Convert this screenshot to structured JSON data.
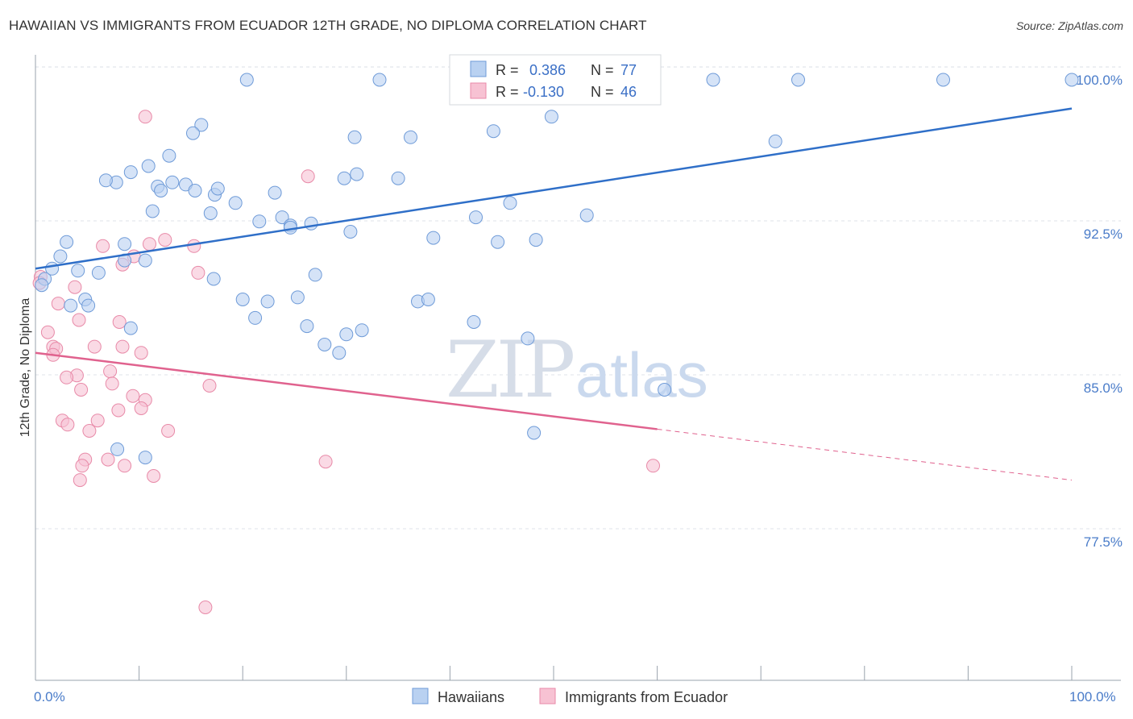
{
  "title": "HAWAIIAN VS IMMIGRANTS FROM ECUADOR 12TH GRADE, NO DIPLOMA CORRELATION CHART",
  "source": "Source: ZipAtlas.com",
  "watermark": {
    "zip": "ZIP",
    "atlas": "atlas"
  },
  "colors": {
    "blue_fill": "#b9d1f1",
    "blue_stroke": "#6f9bd8",
    "blue_line": "#2f6fc8",
    "pink_fill": "#f7c2d3",
    "pink_stroke": "#e88aa8",
    "pink_line": "#e0628e",
    "grid": "#dfe3ea",
    "tick_text": "#4a7cc9"
  },
  "legend": {
    "rows": [
      {
        "r_label": "R = ",
        "r_value": "0.386",
        "n_label": "N = ",
        "n_value": "77"
      },
      {
        "r_label": "R = ",
        "r_value": "-0.130",
        "n_label": "N = ",
        "n_value": "46"
      }
    ]
  },
  "chart_data": {
    "type": "scatter",
    "title": "HAWAIIAN VS IMMIGRANTS FROM ECUADOR 12TH GRADE, NO DIPLOMA CORRELATION CHART",
    "xlabel": "",
    "ylabel": "12th Grade, No Diploma",
    "xlim": [
      0,
      100
    ],
    "ylim": [
      70,
      101.5
    ],
    "x_tick_labels": [
      "0.0%",
      "100.0%"
    ],
    "y_ticks": [
      77.5,
      85.0,
      92.5,
      100.0
    ],
    "y_tick_labels": [
      "77.5%",
      "85.0%",
      "92.5%",
      "100.0%"
    ],
    "grid": true,
    "legend_position": "top-center",
    "series": [
      {
        "name": "Hawaiians",
        "color": "#b9d1f1",
        "trend": {
          "x": [
            0,
            100
          ],
          "y": [
            90.8,
            98.6
          ],
          "dashed_from": null
        },
        "points": [
          [
            20.4,
            100.0
          ],
          [
            33.2,
            100.0
          ],
          [
            65.4,
            100.0
          ],
          [
            73.6,
            100.0
          ],
          [
            87.6,
            100.0
          ],
          [
            100.0,
            100.0
          ],
          [
            49.8,
            98.2
          ],
          [
            16.0,
            97.8
          ],
          [
            15.2,
            97.4
          ],
          [
            30.8,
            97.2
          ],
          [
            36.2,
            97.2
          ],
          [
            44.2,
            97.5
          ],
          [
            71.4,
            97.0
          ],
          [
            12.9,
            96.3
          ],
          [
            10.9,
            95.8
          ],
          [
            29.8,
            95.2
          ],
          [
            31.0,
            95.4
          ],
          [
            35.0,
            95.2
          ],
          [
            13.2,
            95.0
          ],
          [
            7.8,
            95.0
          ],
          [
            9.2,
            95.5
          ],
          [
            6.8,
            95.1
          ],
          [
            11.8,
            94.8
          ],
          [
            14.5,
            94.9
          ],
          [
            12.1,
            94.6
          ],
          [
            15.4,
            94.6
          ],
          [
            17.3,
            94.4
          ],
          [
            17.6,
            94.7
          ],
          [
            23.1,
            94.5
          ],
          [
            11.3,
            93.6
          ],
          [
            16.9,
            93.5
          ],
          [
            19.3,
            94.0
          ],
          [
            21.6,
            93.1
          ],
          [
            23.8,
            93.3
          ],
          [
            26.6,
            93.0
          ],
          [
            42.5,
            93.3
          ],
          [
            45.8,
            94.0
          ],
          [
            53.2,
            93.4
          ],
          [
            48.3,
            92.2
          ],
          [
            30.4,
            92.6
          ],
          [
            24.6,
            92.9
          ],
          [
            24.6,
            92.8
          ],
          [
            38.4,
            92.3
          ],
          [
            44.6,
            92.1
          ],
          [
            3.0,
            92.1
          ],
          [
            8.6,
            92.0
          ],
          [
            2.4,
            91.4
          ],
          [
            8.6,
            91.2
          ],
          [
            10.6,
            91.2
          ],
          [
            4.1,
            90.7
          ],
          [
            6.1,
            90.6
          ],
          [
            0.9,
            90.3
          ],
          [
            0.6,
            90.0
          ],
          [
            1.6,
            90.8
          ],
          [
            17.2,
            90.3
          ],
          [
            22.4,
            89.2
          ],
          [
            27.0,
            90.5
          ],
          [
            25.3,
            89.4
          ],
          [
            20.0,
            89.3
          ],
          [
            3.4,
            89.0
          ],
          [
            4.8,
            89.3
          ],
          [
            5.1,
            89.0
          ],
          [
            21.2,
            88.4
          ],
          [
            26.2,
            88.0
          ],
          [
            30.0,
            87.6
          ],
          [
            31.5,
            87.8
          ],
          [
            36.9,
            89.2
          ],
          [
            27.9,
            87.1
          ],
          [
            29.3,
            86.7
          ],
          [
            37.9,
            89.3
          ],
          [
            42.3,
            88.2
          ],
          [
            47.5,
            87.4
          ],
          [
            60.7,
            84.9
          ],
          [
            48.1,
            82.8
          ],
          [
            7.9,
            82.0
          ],
          [
            10.6,
            81.6
          ],
          [
            9.2,
            87.9
          ]
        ]
      },
      {
        "name": "Immigrants from Ecuador",
        "color": "#f7c2d3",
        "trend": {
          "x": [
            0,
            100
          ],
          "y": [
            86.7,
            80.5
          ],
          "dashed_from": 60
        },
        "points": [
          [
            10.6,
            98.2
          ],
          [
            26.3,
            95.3
          ],
          [
            12.5,
            92.2
          ],
          [
            11.0,
            92.0
          ],
          [
            15.3,
            91.9
          ],
          [
            6.5,
            91.9
          ],
          [
            9.5,
            91.4
          ],
          [
            0.5,
            90.4
          ],
          [
            15.7,
            90.6
          ],
          [
            0.4,
            90.1
          ],
          [
            3.8,
            89.9
          ],
          [
            2.2,
            89.1
          ],
          [
            4.2,
            88.3
          ],
          [
            8.1,
            88.2
          ],
          [
            1.2,
            87.7
          ],
          [
            1.7,
            87.0
          ],
          [
            2.0,
            86.9
          ],
          [
            5.7,
            87.0
          ],
          [
            8.4,
            87.0
          ],
          [
            10.2,
            86.7
          ],
          [
            1.7,
            86.6
          ],
          [
            7.2,
            85.8
          ],
          [
            4.0,
            85.6
          ],
          [
            3.0,
            85.5
          ],
          [
            7.4,
            85.2
          ],
          [
            16.8,
            85.1
          ],
          [
            4.4,
            84.9
          ],
          [
            9.4,
            84.6
          ],
          [
            10.6,
            84.4
          ],
          [
            10.2,
            84.0
          ],
          [
            8.0,
            83.9
          ],
          [
            2.6,
            83.4
          ],
          [
            3.1,
            83.2
          ],
          [
            6.0,
            83.4
          ],
          [
            5.2,
            82.9
          ],
          [
            12.8,
            82.9
          ],
          [
            4.8,
            81.5
          ],
          [
            4.5,
            81.2
          ],
          [
            7.0,
            81.5
          ],
          [
            8.6,
            81.2
          ],
          [
            11.4,
            80.7
          ],
          [
            28.0,
            81.4
          ],
          [
            59.6,
            81.2
          ],
          [
            4.3,
            80.5
          ],
          [
            16.4,
            74.3
          ],
          [
            8.4,
            91.0
          ]
        ]
      }
    ]
  },
  "bottom_legend": [
    "Hawaiians",
    "Immigrants from Ecuador"
  ]
}
